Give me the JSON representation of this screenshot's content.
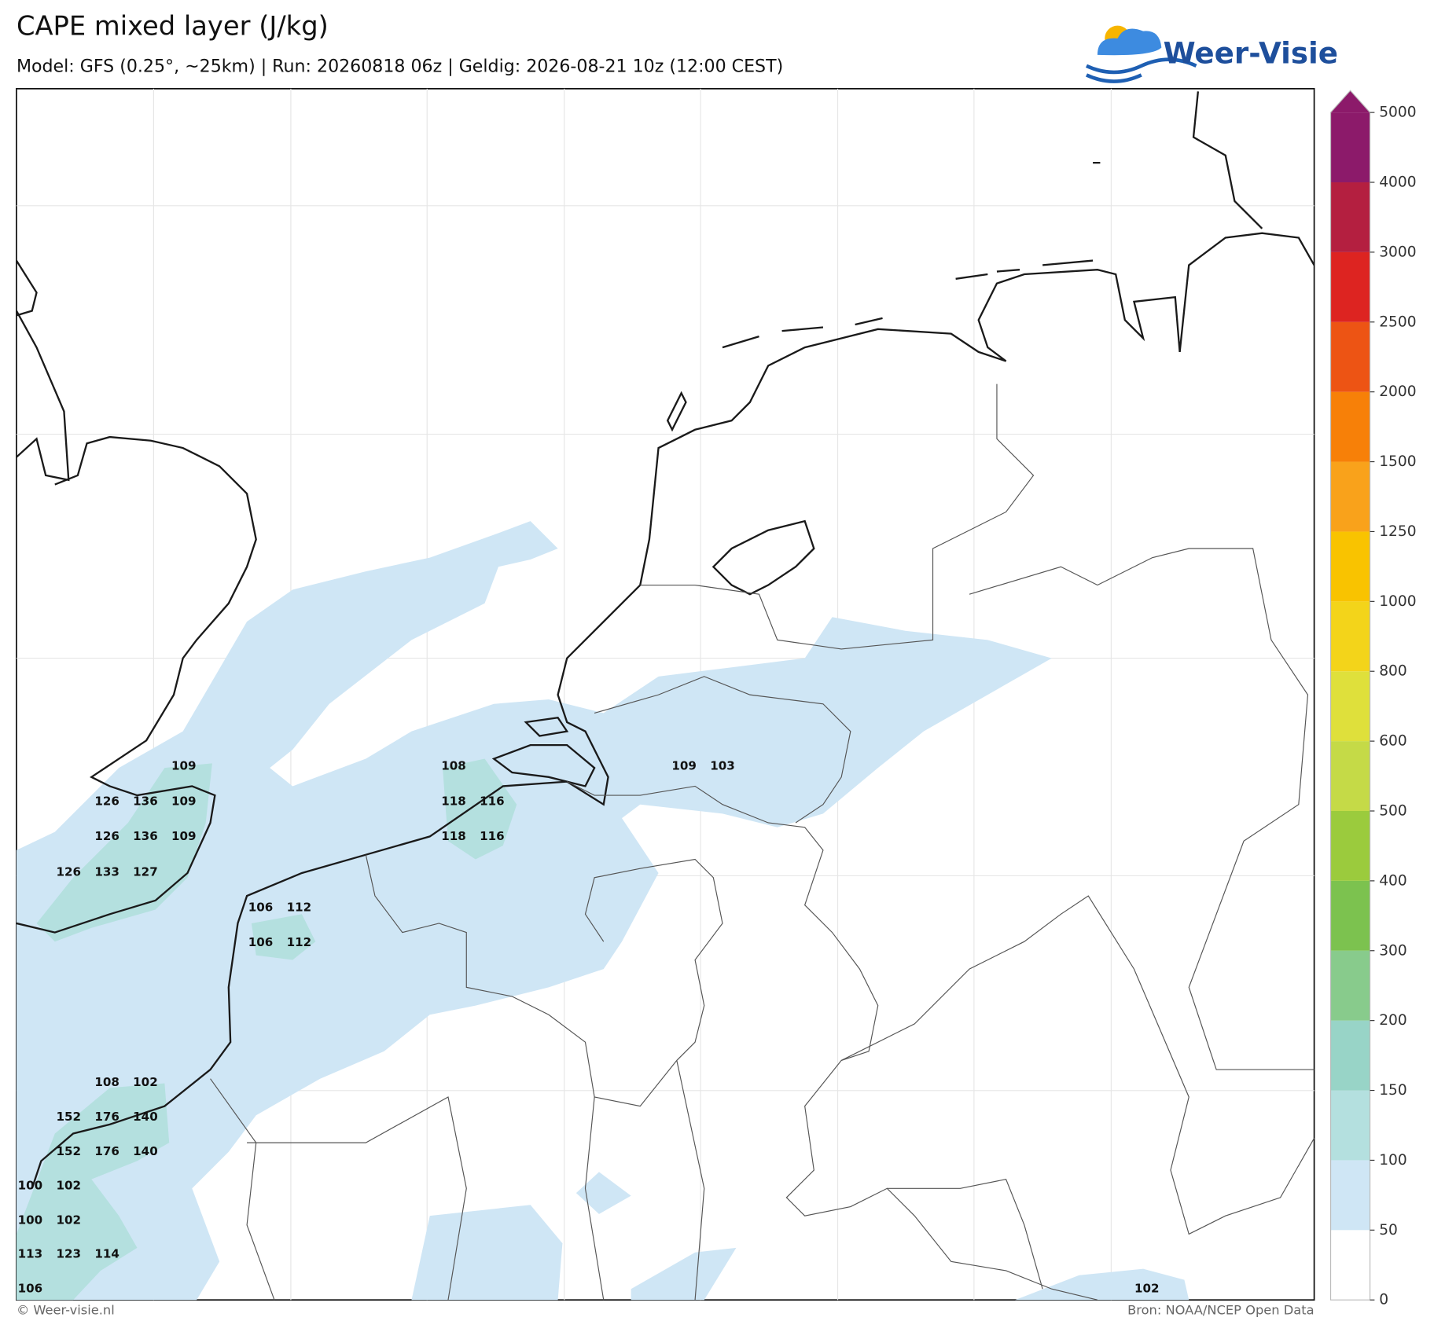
{
  "header": {
    "title": "CAPE mixed layer (J/kg)",
    "subtitle": "Model: GFS (0.25°, ~25km)  |  Run: 20260818 06z  |  Geldig: 2026-08-21 10z (12:00 CEST)",
    "logo": "Weer-Visie"
  },
  "colorbar": {
    "levels": [
      0,
      50,
      100,
      150,
      200,
      300,
      400,
      500,
      600,
      800,
      1000,
      1250,
      1500,
      2000,
      2500,
      3000,
      4000,
      5000
    ],
    "colors": [
      "#ffffff",
      "#cfe6f5",
      "#b4e0df",
      "#98d4c7",
      "#88cb8c",
      "#7cc24f",
      "#9bcb3d",
      "#c5da47",
      "#dfe03b",
      "#f3d41a",
      "#f9c300",
      "#f9a21b",
      "#f78008",
      "#ed5414",
      "#dd2421",
      "#b41f40",
      "#8c1a6a"
    ],
    "extend_color": "#8c1a6a"
  },
  "labels": [
    109,
    126,
    136,
    109,
    126,
    136,
    109,
    126,
    133,
    127,
    108,
    118,
    116,
    118,
    116,
    109,
    103,
    106,
    112,
    106,
    112,
    108,
    102,
    152,
    176,
    140,
    152,
    176,
    140,
    100,
    102,
    100,
    102,
    113,
    123,
    114,
    106,
    102
  ],
  "footer": {
    "left": "© Weer-visie.nl",
    "right": "Bron: NOAA/NCEP Open Data"
  }
}
